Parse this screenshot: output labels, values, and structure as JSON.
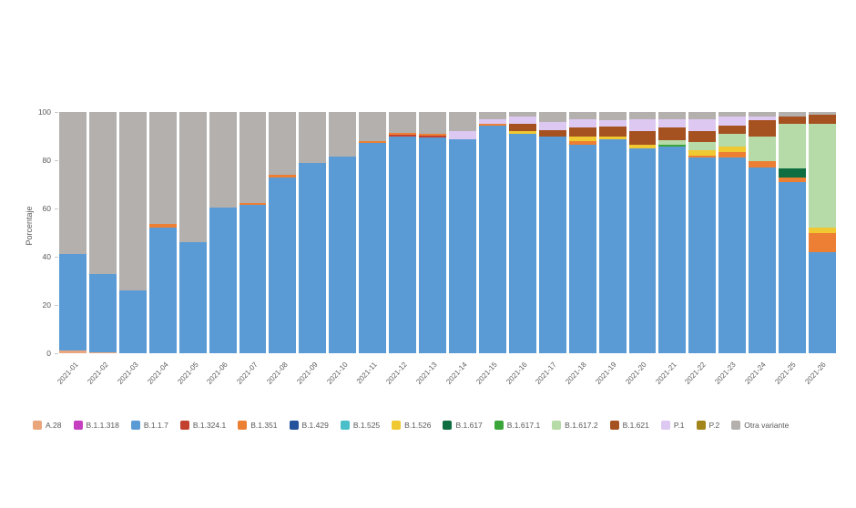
{
  "chart_data": {
    "type": "bar",
    "stacked": true,
    "title": "",
    "xlabel": "",
    "ylabel": "Porcentaje",
    "ylim": [
      0,
      100
    ],
    "yticks": [
      0,
      20,
      40,
      60,
      80,
      100
    ],
    "grid": false,
    "legend_position": "bottom",
    "categories": [
      "2021-01",
      "2021-02",
      "2021-03",
      "2021-04",
      "2021-05",
      "2021-06",
      "2021-07",
      "2021-08",
      "2021-09",
      "2021-10",
      "2021-11",
      "2021-12",
      "2021-13",
      "2021-14",
      "2021-15",
      "2021-16",
      "2021-17",
      "2021-18",
      "2021-19",
      "2021-20",
      "2021-21",
      "2021-22",
      "2021-23",
      "2021-24",
      "2021-25",
      "2021-26"
    ],
    "series": [
      {
        "name": "A.28",
        "color": "#e9a57b",
        "values": [
          1,
          0.5,
          0,
          0,
          0,
          0,
          0,
          0,
          0,
          0,
          0,
          0,
          0,
          0,
          0,
          0,
          0,
          0,
          0,
          0,
          0,
          0,
          0,
          0,
          0,
          0
        ]
      },
      {
        "name": "B.1.1.318",
        "color": "#c440c0",
        "values": [
          0,
          0,
          0,
          0,
          0,
          0,
          0,
          0,
          0,
          0,
          0,
          0,
          0,
          0,
          0,
          0,
          0,
          0,
          0,
          0,
          0,
          0,
          0,
          0,
          0,
          0
        ]
      },
      {
        "name": "B.1.1.7",
        "color": "#5b9bd5",
        "values": [
          40,
          32.5,
          26,
          52,
          46,
          60.5,
          61.5,
          73,
          79,
          81.5,
          87,
          90,
          89.5,
          88.5,
          94.5,
          91,
          90,
          86.5,
          88.5,
          85,
          85.5,
          81,
          81,
          77,
          71,
          42
        ]
      },
      {
        "name": "B.1.324.1",
        "color": "#c2422f",
        "values": [
          0,
          0,
          0,
          0,
          0,
          0,
          0,
          0,
          0,
          0,
          0,
          0.7,
          0.7,
          0,
          0,
          0,
          0,
          0,
          0,
          0,
          0,
          0,
          0,
          0,
          0,
          0
        ]
      },
      {
        "name": "B.1.351",
        "color": "#ec7f33",
        "values": [
          0,
          0,
          0,
          1.5,
          0,
          0,
          0.8,
          0.8,
          0,
          0,
          1,
          0.8,
          0.8,
          0,
          0.7,
          0,
          0,
          1.5,
          0,
          0,
          0,
          1,
          2.5,
          2.5,
          2,
          8
        ]
      },
      {
        "name": "B.1.429",
        "color": "#24519b",
        "values": [
          0,
          0,
          0,
          0,
          0,
          0,
          0,
          0,
          0,
          0,
          0,
          0,
          0,
          0,
          0,
          0,
          0,
          0,
          0,
          0,
          0,
          0,
          0,
          0,
          0,
          0
        ]
      },
      {
        "name": "B.1.525",
        "color": "#4bbfc9",
        "values": [
          0,
          0,
          0,
          0,
          0,
          0,
          0,
          0,
          0,
          0,
          0,
          0,
          0,
          0,
          0,
          0,
          0,
          0,
          0,
          0,
          0,
          0,
          0,
          0,
          0,
          0
        ]
      },
      {
        "name": "B.1.526",
        "color": "#f0c832",
        "values": [
          0,
          0,
          0,
          0,
          0,
          0,
          0,
          0,
          0,
          0,
          0,
          0,
          0,
          0,
          0,
          1,
          0,
          2,
          1.5,
          1.5,
          0,
          2,
          2,
          0,
          0,
          2
        ]
      },
      {
        "name": "B.1.617",
        "color": "#0e6e42",
        "values": [
          0,
          0,
          0,
          0,
          0,
          0,
          0,
          0,
          0,
          0,
          0,
          0,
          0,
          0,
          0,
          0,
          0,
          0,
          0,
          0,
          0,
          0,
          0,
          0,
          3.5,
          0
        ]
      },
      {
        "name": "B.1.617.1",
        "color": "#3aa63a",
        "values": [
          0,
          0,
          0,
          0,
          0,
          0,
          0,
          0,
          0,
          0,
          0,
          0,
          0,
          0,
          0,
          0,
          0,
          0,
          0,
          0,
          1,
          0,
          0,
          0,
          0,
          0
        ]
      },
      {
        "name": "B.1.617.2",
        "color": "#b6daa8",
        "values": [
          0,
          0,
          0,
          0,
          0,
          0,
          0,
          0,
          0,
          0,
          0,
          0,
          0,
          0,
          0,
          0,
          0,
          0,
          0,
          0,
          2,
          3.5,
          5.5,
          10.5,
          18.5,
          43
        ]
      },
      {
        "name": "B.1.621",
        "color": "#a55220",
        "values": [
          0,
          0,
          0,
          0,
          0,
          0,
          0,
          0,
          0,
          0,
          0,
          0,
          0,
          0,
          0,
          3,
          2.5,
          3.5,
          4,
          5.5,
          5,
          4.5,
          3.5,
          6.5,
          3,
          4
        ]
      },
      {
        "name": "P.1",
        "color": "#ddc8f2",
        "values": [
          0,
          0,
          0,
          0,
          0,
          0,
          0,
          0,
          0,
          0,
          0,
          0,
          0,
          3.5,
          1.8,
          3,
          3.5,
          3.5,
          2.5,
          5,
          3.5,
          5,
          3.5,
          1.5,
          0,
          0
        ]
      },
      {
        "name": "P.2",
        "color": "#a2861c",
        "values": [
          0,
          0,
          0,
          0,
          0,
          0,
          0,
          0,
          0,
          0,
          0,
          0,
          0,
          0,
          0,
          0,
          0,
          0,
          0,
          0,
          0,
          0,
          0,
          0,
          0,
          0
        ]
      },
      {
        "name": "Otra variante",
        "color": "#b3b0ad",
        "values": [
          59,
          67,
          74,
          46.5,
          54,
          39.5,
          37.7,
          26.2,
          21,
          18.5,
          12,
          8.5,
          9,
          8,
          3,
          2,
          4,
          3,
          3.5,
          3,
          3,
          3,
          2,
          2,
          2,
          1
        ]
      }
    ]
  }
}
